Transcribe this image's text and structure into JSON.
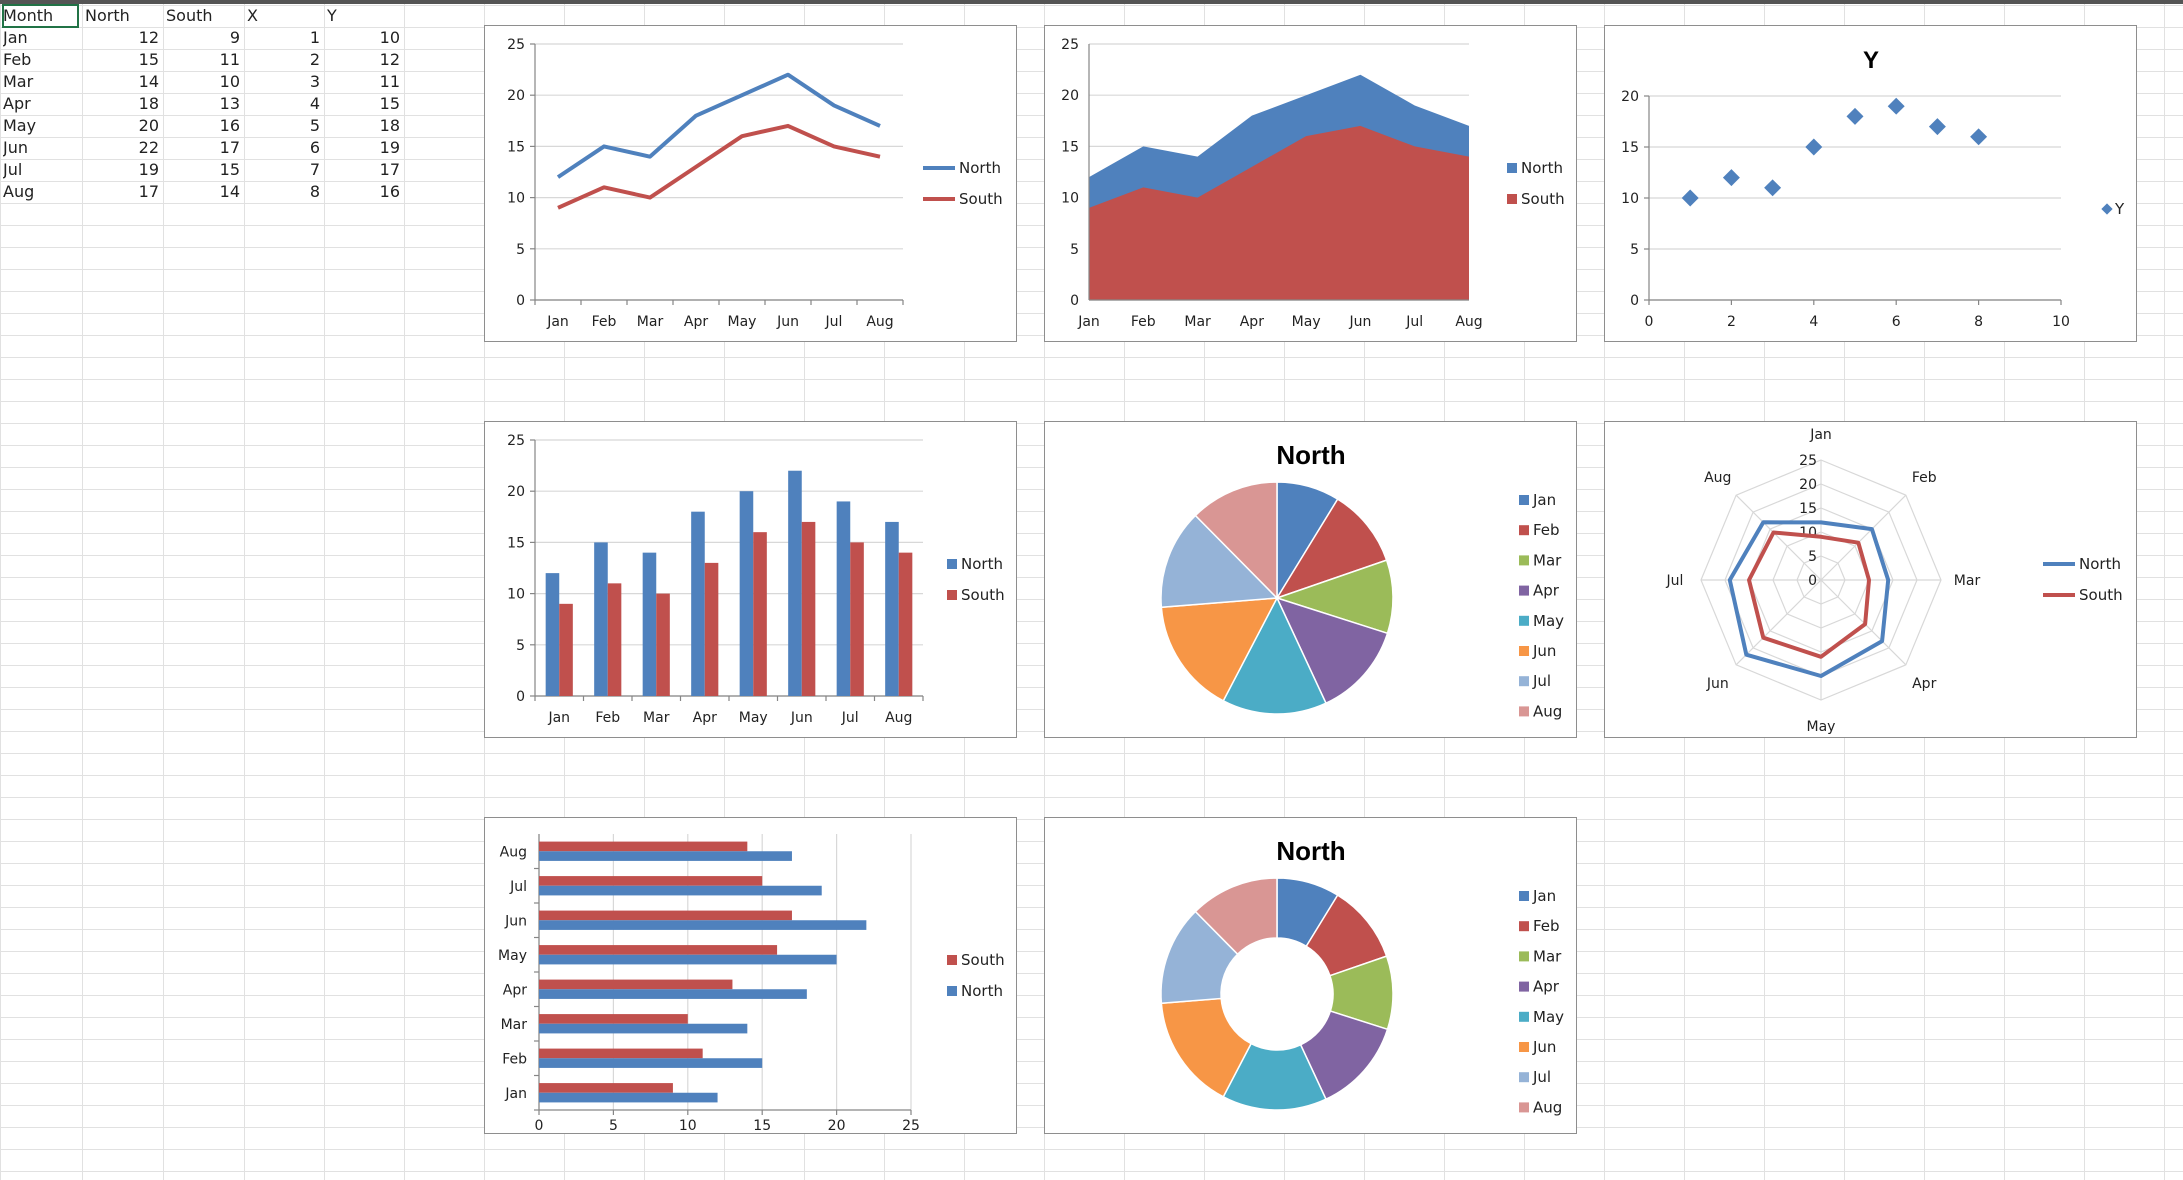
{
  "sheet": {
    "headers": [
      "Month",
      "North",
      "South",
      "X",
      "Y"
    ],
    "rows": [
      [
        "Jan",
        "12",
        "9",
        "1",
        "10"
      ],
      [
        "Feb",
        "15",
        "11",
        "2",
        "12"
      ],
      [
        "Mar",
        "14",
        "10",
        "3",
        "11"
      ],
      [
        "Apr",
        "18",
        "13",
        "4",
        "15"
      ],
      [
        "May",
        "20",
        "16",
        "5",
        "18"
      ],
      [
        "Jun",
        "22",
        "17",
        "6",
        "19"
      ],
      [
        "Jul",
        "19",
        "15",
        "7",
        "17"
      ],
      [
        "Aug",
        "17",
        "14",
        "8",
        "16"
      ]
    ]
  },
  "colors": {
    "north": "#4F81BD",
    "south": "#C0504D",
    "pie": [
      "#4F81BD",
      "#C0504D",
      "#9BBB59",
      "#8064A2",
      "#4BACC6",
      "#F79646",
      "#95B3D7",
      "#D99694"
    ],
    "gridline": "#d8d8d8",
    "axis": "#868686"
  },
  "chart_data": [
    {
      "id": "line",
      "type": "line",
      "title": "",
      "categories": [
        "Jan",
        "Feb",
        "Mar",
        "Apr",
        "May",
        "Jun",
        "Jul",
        "Aug"
      ],
      "series": [
        {
          "name": "North",
          "values": [
            12,
            15,
            14,
            18,
            20,
            22,
            19,
            17
          ]
        },
        {
          "name": "South",
          "values": [
            9,
            11,
            10,
            13,
            16,
            17,
            15,
            14
          ]
        }
      ],
      "ylim": [
        0,
        25
      ],
      "yticks": [
        "0",
        "5",
        "10",
        "15",
        "20",
        "25"
      ],
      "legend": [
        "North",
        "South"
      ],
      "legend_position": "right"
    },
    {
      "id": "area",
      "type": "area",
      "title": "",
      "categories": [
        "Jan",
        "Feb",
        "Mar",
        "Apr",
        "May",
        "Jun",
        "Jul",
        "Aug"
      ],
      "series": [
        {
          "name": "North",
          "values": [
            12,
            15,
            14,
            18,
            20,
            22,
            19,
            17
          ]
        },
        {
          "name": "South",
          "values": [
            9,
            11,
            10,
            13,
            16,
            17,
            15,
            14
          ]
        }
      ],
      "ylim": [
        0,
        25
      ],
      "yticks": [
        "0",
        "5",
        "10",
        "15",
        "20",
        "25"
      ],
      "legend": [
        "North",
        "South"
      ],
      "legend_position": "right"
    },
    {
      "id": "scatter",
      "type": "scatter",
      "title": "Y",
      "series": [
        {
          "name": "Y",
          "x": [
            1,
            2,
            3,
            4,
            5,
            6,
            7,
            8
          ],
          "y": [
            10,
            12,
            11,
            15,
            18,
            19,
            17,
            16
          ]
        }
      ],
      "xlim": [
        0,
        10
      ],
      "ylim": [
        0,
        20
      ],
      "xticks": [
        "0",
        "2",
        "4",
        "6",
        "8",
        "10"
      ],
      "yticks": [
        "0",
        "5",
        "10",
        "15",
        "20"
      ],
      "legend": [
        "Y"
      ],
      "legend_position": "right"
    },
    {
      "id": "column",
      "type": "bar",
      "orientation": "vertical",
      "title": "",
      "categories": [
        "Jan",
        "Feb",
        "Mar",
        "Apr",
        "May",
        "Jun",
        "Jul",
        "Aug"
      ],
      "series": [
        {
          "name": "North",
          "values": [
            12,
            15,
            14,
            18,
            20,
            22,
            19,
            17
          ]
        },
        {
          "name": "South",
          "values": [
            9,
            11,
            10,
            13,
            16,
            17,
            15,
            14
          ]
        }
      ],
      "ylim": [
        0,
        25
      ],
      "yticks": [
        "0",
        "5",
        "10",
        "15",
        "20",
        "25"
      ],
      "legend": [
        "North",
        "South"
      ],
      "legend_position": "right"
    },
    {
      "id": "pie",
      "type": "pie",
      "title": "North",
      "categories": [
        "Jan",
        "Feb",
        "Mar",
        "Apr",
        "May",
        "Jun",
        "Jul",
        "Aug"
      ],
      "values": [
        12,
        15,
        14,
        18,
        20,
        22,
        19,
        17
      ],
      "legend": [
        "Jan",
        "Feb",
        "Mar",
        "Apr",
        "May",
        "Jun",
        "Jul",
        "Aug"
      ],
      "legend_position": "right"
    },
    {
      "id": "radar",
      "type": "radar",
      "title": "",
      "categories": [
        "Jan",
        "Feb",
        "Mar",
        "Apr",
        "May",
        "Jun",
        "Jul",
        "Aug"
      ],
      "series": [
        {
          "name": "North",
          "values": [
            12,
            15,
            14,
            18,
            20,
            22,
            19,
            17
          ]
        },
        {
          "name": "South",
          "values": [
            9,
            11,
            10,
            13,
            16,
            17,
            15,
            14
          ]
        }
      ],
      "rlim": [
        0,
        25
      ],
      "rticks": [
        "0",
        "5",
        "10",
        "15",
        "20",
        "25"
      ],
      "legend": [
        "North",
        "South"
      ],
      "legend_position": "right"
    },
    {
      "id": "hbar",
      "type": "bar",
      "orientation": "horizontal",
      "title": "",
      "categories": [
        "Jan",
        "Feb",
        "Mar",
        "Apr",
        "May",
        "Jun",
        "Jul",
        "Aug"
      ],
      "series": [
        {
          "name": "North",
          "values": [
            12,
            15,
            14,
            18,
            20,
            22,
            19,
            17
          ]
        },
        {
          "name": "South",
          "values": [
            9,
            11,
            10,
            13,
            16,
            17,
            15,
            14
          ]
        }
      ],
      "xlim": [
        0,
        25
      ],
      "xticks": [
        "0",
        "5",
        "10",
        "15",
        "20",
        "25"
      ],
      "legend": [
        "South",
        "North"
      ],
      "legend_position": "right"
    },
    {
      "id": "donut",
      "type": "pie",
      "variant": "doughnut",
      "title": "North",
      "categories": [
        "Jan",
        "Feb",
        "Mar",
        "Apr",
        "May",
        "Jun",
        "Jul",
        "Aug"
      ],
      "values": [
        12,
        15,
        14,
        18,
        20,
        22,
        19,
        17
      ],
      "legend": [
        "Jan",
        "Feb",
        "Mar",
        "Apr",
        "May",
        "Jun",
        "Jul",
        "Aug"
      ],
      "legend_position": "right"
    }
  ]
}
